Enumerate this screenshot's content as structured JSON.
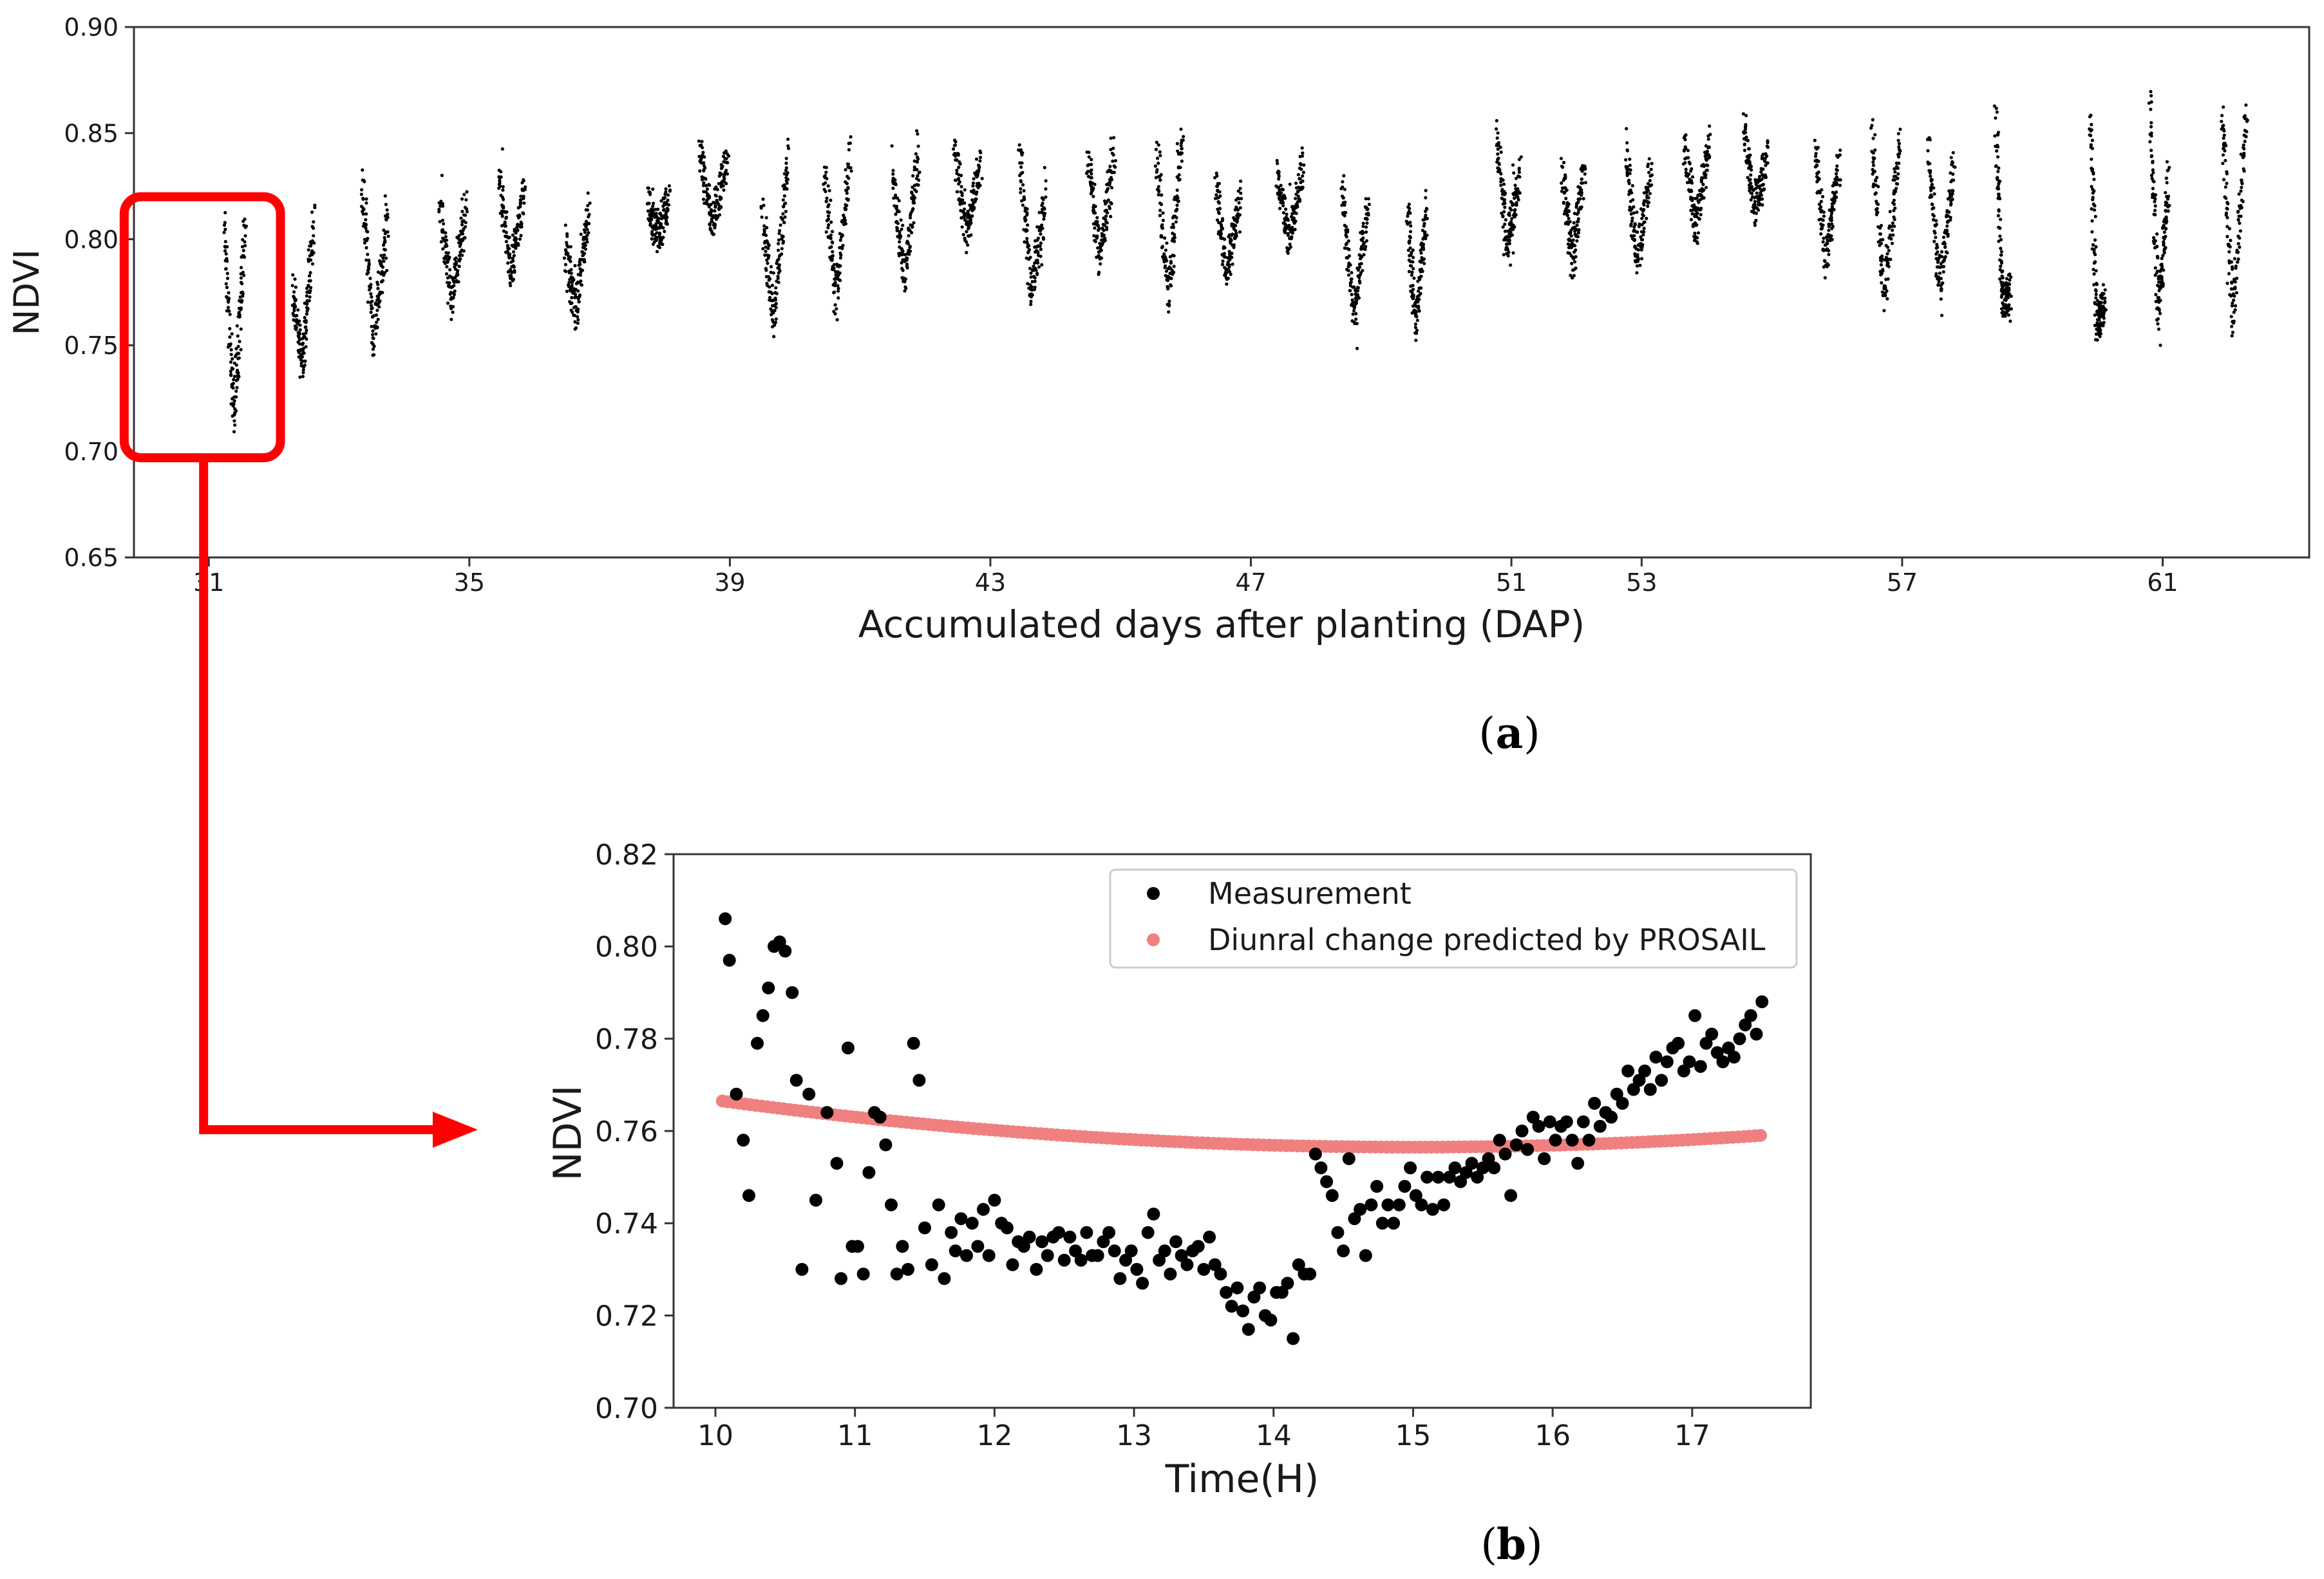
{
  "colors": {
    "measurement": "#000000",
    "prosail": "#f08080",
    "highlight": "#ff0000",
    "axis": "#333333"
  },
  "chart_data": [
    {
      "id": "a",
      "type": "scatter",
      "panel_label": "a",
      "xlabel": "Accumulated days after planting (DAP)",
      "ylabel": "NDVI",
      "xlim": [
        29.85,
        63.25
      ],
      "ylim": [
        0.65,
        0.9
      ],
      "xticks": [
        31,
        35,
        39,
        43,
        47,
        51,
        53,
        57,
        61
      ],
      "yticks": [
        0.65,
        0.7,
        0.75,
        0.8,
        0.85,
        0.9
      ],
      "xtick_labels": [
        "31",
        "35",
        "39",
        "43",
        "47",
        "51",
        "53",
        "57",
        "61"
      ],
      "ytick_labels": [
        "0.65",
        "0.70",
        "0.75",
        "0.80",
        "0.85",
        "0.90"
      ],
      "highlight_box": {
        "x": [
          29.7,
          32.1
        ],
        "y": [
          0.697,
          0.82
        ]
      },
      "daily_clusters": [
        {
          "day": 31.4,
          "start": 0.805,
          "min": 0.716,
          "end": 0.806,
          "width": 0.32
        },
        {
          "day": 32.45,
          "start": 0.776,
          "min": 0.74,
          "end": 0.81,
          "width": 0.32
        },
        {
          "day": 33.55,
          "start": 0.83,
          "min": 0.752,
          "end": 0.813,
          "width": 0.4
        },
        {
          "day": 34.75,
          "start": 0.815,
          "min": 0.77,
          "end": 0.817,
          "width": 0.4
        },
        {
          "day": 35.65,
          "start": 0.832,
          "min": 0.785,
          "end": 0.822,
          "width": 0.38
        },
        {
          "day": 36.65,
          "start": 0.798,
          "min": 0.765,
          "end": 0.815,
          "width": 0.36
        },
        {
          "day": 37.9,
          "start": 0.818,
          "min": 0.8,
          "end": 0.819,
          "width": 0.32
        },
        {
          "day": 38.75,
          "start": 0.84,
          "min": 0.808,
          "end": 0.838,
          "width": 0.42
        },
        {
          "day": 39.7,
          "start": 0.812,
          "min": 0.76,
          "end": 0.84,
          "width": 0.4
        },
        {
          "day": 40.65,
          "start": 0.835,
          "min": 0.77,
          "end": 0.841,
          "width": 0.4
        },
        {
          "day": 41.7,
          "start": 0.835,
          "min": 0.78,
          "end": 0.842,
          "width": 0.4
        },
        {
          "day": 42.65,
          "start": 0.842,
          "min": 0.802,
          "end": 0.835,
          "width": 0.4
        },
        {
          "day": 43.65,
          "start": 0.842,
          "min": 0.775,
          "end": 0.82,
          "width": 0.4
        },
        {
          "day": 44.7,
          "start": 0.84,
          "min": 0.79,
          "end": 0.842,
          "width": 0.4
        },
        {
          "day": 45.75,
          "start": 0.846,
          "min": 0.772,
          "end": 0.847,
          "width": 0.4
        },
        {
          "day": 46.65,
          "start": 0.827,
          "min": 0.785,
          "end": 0.822,
          "width": 0.38
        },
        {
          "day": 47.6,
          "start": 0.832,
          "min": 0.8,
          "end": 0.835,
          "width": 0.4
        },
        {
          "day": 48.6,
          "start": 0.824,
          "min": 0.762,
          "end": 0.817,
          "width": 0.4
        },
        {
          "day": 49.55,
          "start": 0.812,
          "min": 0.76,
          "end": 0.815,
          "width": 0.3
        },
        {
          "day": 50.95,
          "start": 0.848,
          "min": 0.798,
          "end": 0.83,
          "width": 0.36
        },
        {
          "day": 51.95,
          "start": 0.832,
          "min": 0.79,
          "end": 0.835,
          "width": 0.34
        },
        {
          "day": 52.95,
          "start": 0.84,
          "min": 0.79,
          "end": 0.832,
          "width": 0.38
        },
        {
          "day": 53.85,
          "start": 0.845,
          "min": 0.805,
          "end": 0.846,
          "width": 0.38
        },
        {
          "day": 54.75,
          "start": 0.856,
          "min": 0.815,
          "end": 0.84,
          "width": 0.36
        },
        {
          "day": 55.85,
          "start": 0.84,
          "min": 0.79,
          "end": 0.838,
          "width": 0.38
        },
        {
          "day": 56.75,
          "start": 0.85,
          "min": 0.772,
          "end": 0.849,
          "width": 0.44
        },
        {
          "day": 57.6,
          "start": 0.845,
          "min": 0.778,
          "end": 0.835,
          "width": 0.4
        },
        {
          "day": 58.55,
          "start": 0.856,
          "min": 0.77,
          "end": 0.775,
          "width": 0.22
        },
        {
          "day": 60.0,
          "start": 0.855,
          "min": 0.76,
          "end": 0.77,
          "width": 0.22
        },
        {
          "day": 60.95,
          "start": 0.862,
          "min": 0.762,
          "end": 0.83,
          "width": 0.28
        },
        {
          "day": 62.1,
          "start": 0.86,
          "min": 0.76,
          "end": 0.864,
          "width": 0.38
        }
      ]
    },
    {
      "id": "b",
      "type": "scatter",
      "panel_label": "b",
      "xlabel": "Time(H)",
      "ylabel": "NDVI",
      "xlim": [
        9.7,
        17.85
      ],
      "ylim": [
        0.7,
        0.82
      ],
      "xticks": [
        10,
        11,
        12,
        13,
        14,
        15,
        16,
        17
      ],
      "yticks": [
        0.7,
        0.72,
        0.74,
        0.76,
        0.78,
        0.8,
        0.82
      ],
      "xtick_labels": [
        "10",
        "11",
        "12",
        "13",
        "14",
        "15",
        "16",
        "17"
      ],
      "ytick_labels": [
        "0.70",
        "0.72",
        "0.74",
        "0.76",
        "0.78",
        "0.80",
        "0.82"
      ],
      "legend_location": "top-right",
      "series": [
        {
          "name": "Measurement",
          "points": [
            [
              10.07,
              0.806
            ],
            [
              10.1,
              0.797
            ],
            [
              10.15,
              0.768
            ],
            [
              10.2,
              0.758
            ],
            [
              10.24,
              0.746
            ],
            [
              10.3,
              0.779
            ],
            [
              10.34,
              0.785
            ],
            [
              10.38,
              0.791
            ],
            [
              10.42,
              0.8
            ],
            [
              10.46,
              0.801
            ],
            [
              10.5,
              0.799
            ],
            [
              10.55,
              0.79
            ],
            [
              10.58,
              0.771
            ],
            [
              10.62,
              0.73
            ],
            [
              10.67,
              0.768
            ],
            [
              10.72,
              0.745
            ],
            [
              10.8,
              0.764
            ],
            [
              10.87,
              0.753
            ],
            [
              10.9,
              0.728
            ],
            [
              10.95,
              0.778
            ],
            [
              10.98,
              0.735
            ],
            [
              11.02,
              0.735
            ],
            [
              11.06,
              0.729
            ],
            [
              11.1,
              0.751
            ],
            [
              11.14,
              0.764
            ],
            [
              11.18,
              0.763
            ],
            [
              11.22,
              0.757
            ],
            [
              11.26,
              0.744
            ],
            [
              11.3,
              0.729
            ],
            [
              11.34,
              0.735
            ],
            [
              11.38,
              0.73
            ],
            [
              11.42,
              0.779
            ],
            [
              11.46,
              0.771
            ],
            [
              11.5,
              0.739
            ],
            [
              11.55,
              0.731
            ],
            [
              11.6,
              0.744
            ],
            [
              11.64,
              0.728
            ],
            [
              11.69,
              0.738
            ],
            [
              11.72,
              0.734
            ],
            [
              11.76,
              0.741
            ],
            [
              11.8,
              0.733
            ],
            [
              11.84,
              0.74
            ],
            [
              11.88,
              0.735
            ],
            [
              11.92,
              0.743
            ],
            [
              11.96,
              0.733
            ],
            [
              12.0,
              0.745
            ],
            [
              12.05,
              0.74
            ],
            [
              12.09,
              0.739
            ],
            [
              12.13,
              0.731
            ],
            [
              12.17,
              0.736
            ],
            [
              12.21,
              0.735
            ],
            [
              12.25,
              0.737
            ],
            [
              12.3,
              0.73
            ],
            [
              12.34,
              0.736
            ],
            [
              12.38,
              0.733
            ],
            [
              12.42,
              0.737
            ],
            [
              12.46,
              0.738
            ],
            [
              12.5,
              0.732
            ],
            [
              12.54,
              0.737
            ],
            [
              12.58,
              0.734
            ],
            [
              12.62,
              0.732
            ],
            [
              12.66,
              0.738
            ],
            [
              12.7,
              0.733
            ],
            [
              12.74,
              0.733
            ],
            [
              12.78,
              0.736
            ],
            [
              12.82,
              0.738
            ],
            [
              12.86,
              0.734
            ],
            [
              12.9,
              0.728
            ],
            [
              12.94,
              0.732
            ],
            [
              12.98,
              0.734
            ],
            [
              13.02,
              0.73
            ],
            [
              13.06,
              0.727
            ],
            [
              13.1,
              0.738
            ],
            [
              13.14,
              0.742
            ],
            [
              13.18,
              0.732
            ],
            [
              13.22,
              0.734
            ],
            [
              13.26,
              0.729
            ],
            [
              13.3,
              0.736
            ],
            [
              13.34,
              0.733
            ],
            [
              13.38,
              0.731
            ],
            [
              13.42,
              0.734
            ],
            [
              13.46,
              0.735
            ],
            [
              13.5,
              0.73
            ],
            [
              13.54,
              0.737
            ],
            [
              13.58,
              0.731
            ],
            [
              13.62,
              0.729
            ],
            [
              13.66,
              0.725
            ],
            [
              13.7,
              0.722
            ],
            [
              13.74,
              0.726
            ],
            [
              13.78,
              0.721
            ],
            [
              13.82,
              0.717
            ],
            [
              13.86,
              0.724
            ],
            [
              13.9,
              0.726
            ],
            [
              13.94,
              0.72
            ],
            [
              13.98,
              0.719
            ],
            [
              14.02,
              0.725
            ],
            [
              14.06,
              0.725
            ],
            [
              14.1,
              0.727
            ],
            [
              14.14,
              0.715
            ],
            [
              14.18,
              0.731
            ],
            [
              14.22,
              0.729
            ],
            [
              14.26,
              0.729
            ],
            [
              14.3,
              0.755
            ],
            [
              14.34,
              0.752
            ],
            [
              14.38,
              0.749
            ],
            [
              14.42,
              0.746
            ],
            [
              14.46,
              0.738
            ],
            [
              14.5,
              0.734
            ],
            [
              14.54,
              0.754
            ],
            [
              14.58,
              0.741
            ],
            [
              14.62,
              0.743
            ],
            [
              14.66,
              0.733
            ],
            [
              14.7,
              0.744
            ],
            [
              14.74,
              0.748
            ],
            [
              14.78,
              0.74
            ],
            [
              14.82,
              0.744
            ],
            [
              14.86,
              0.74
            ],
            [
              14.9,
              0.744
            ],
            [
              14.94,
              0.748
            ],
            [
              14.98,
              0.752
            ],
            [
              15.02,
              0.746
            ],
            [
              15.06,
              0.744
            ],
            [
              15.1,
              0.75
            ],
            [
              15.14,
              0.743
            ],
            [
              15.18,
              0.75
            ],
            [
              15.22,
              0.744
            ],
            [
              15.26,
              0.75
            ],
            [
              15.3,
              0.752
            ],
            [
              15.34,
              0.749
            ],
            [
              15.38,
              0.751
            ],
            [
              15.42,
              0.753
            ],
            [
              15.46,
              0.75
            ],
            [
              15.5,
              0.752
            ],
            [
              15.54,
              0.754
            ],
            [
              15.58,
              0.752
            ],
            [
              15.62,
              0.758
            ],
            [
              15.66,
              0.755
            ],
            [
              15.7,
              0.746
            ],
            [
              15.74,
              0.757
            ],
            [
              15.78,
              0.76
            ],
            [
              15.82,
              0.756
            ],
            [
              15.86,
              0.763
            ],
            [
              15.9,
              0.761
            ],
            [
              15.94,
              0.754
            ],
            [
              15.98,
              0.762
            ],
            [
              16.02,
              0.758
            ],
            [
              16.06,
              0.761
            ],
            [
              16.1,
              0.762
            ],
            [
              16.14,
              0.758
            ],
            [
              16.18,
              0.753
            ],
            [
              16.22,
              0.762
            ],
            [
              16.26,
              0.758
            ],
            [
              16.3,
              0.766
            ],
            [
              16.34,
              0.761
            ],
            [
              16.38,
              0.764
            ],
            [
              16.42,
              0.763
            ],
            [
              16.46,
              0.768
            ],
            [
              16.5,
              0.766
            ],
            [
              16.54,
              0.773
            ],
            [
              16.58,
              0.769
            ],
            [
              16.62,
              0.771
            ],
            [
              16.66,
              0.773
            ],
            [
              16.7,
              0.769
            ],
            [
              16.74,
              0.776
            ],
            [
              16.78,
              0.771
            ],
            [
              16.82,
              0.775
            ],
            [
              16.86,
              0.778
            ],
            [
              16.9,
              0.779
            ],
            [
              16.94,
              0.773
            ],
            [
              16.98,
              0.775
            ],
            [
              17.02,
              0.785
            ],
            [
              17.06,
              0.774
            ],
            [
              17.1,
              0.779
            ],
            [
              17.14,
              0.781
            ],
            [
              17.18,
              0.777
            ],
            [
              17.22,
              0.775
            ],
            [
              17.26,
              0.778
            ],
            [
              17.3,
              0.776
            ],
            [
              17.34,
              0.78
            ],
            [
              17.38,
              0.783
            ],
            [
              17.42,
              0.785
            ],
            [
              17.46,
              0.781
            ],
            [
              17.5,
              0.788
            ]
          ]
        },
        {
          "name": "Diunral change predicted by PROSAIL",
          "curve": {
            "x_start": 10.05,
            "x_end": 17.5,
            "x_step": 0.04,
            "quadratic_vertex_x": 15.0,
            "quadratic_vertex_y": 0.7565,
            "value_at_start": 0.7665
          }
        }
      ]
    }
  ]
}
